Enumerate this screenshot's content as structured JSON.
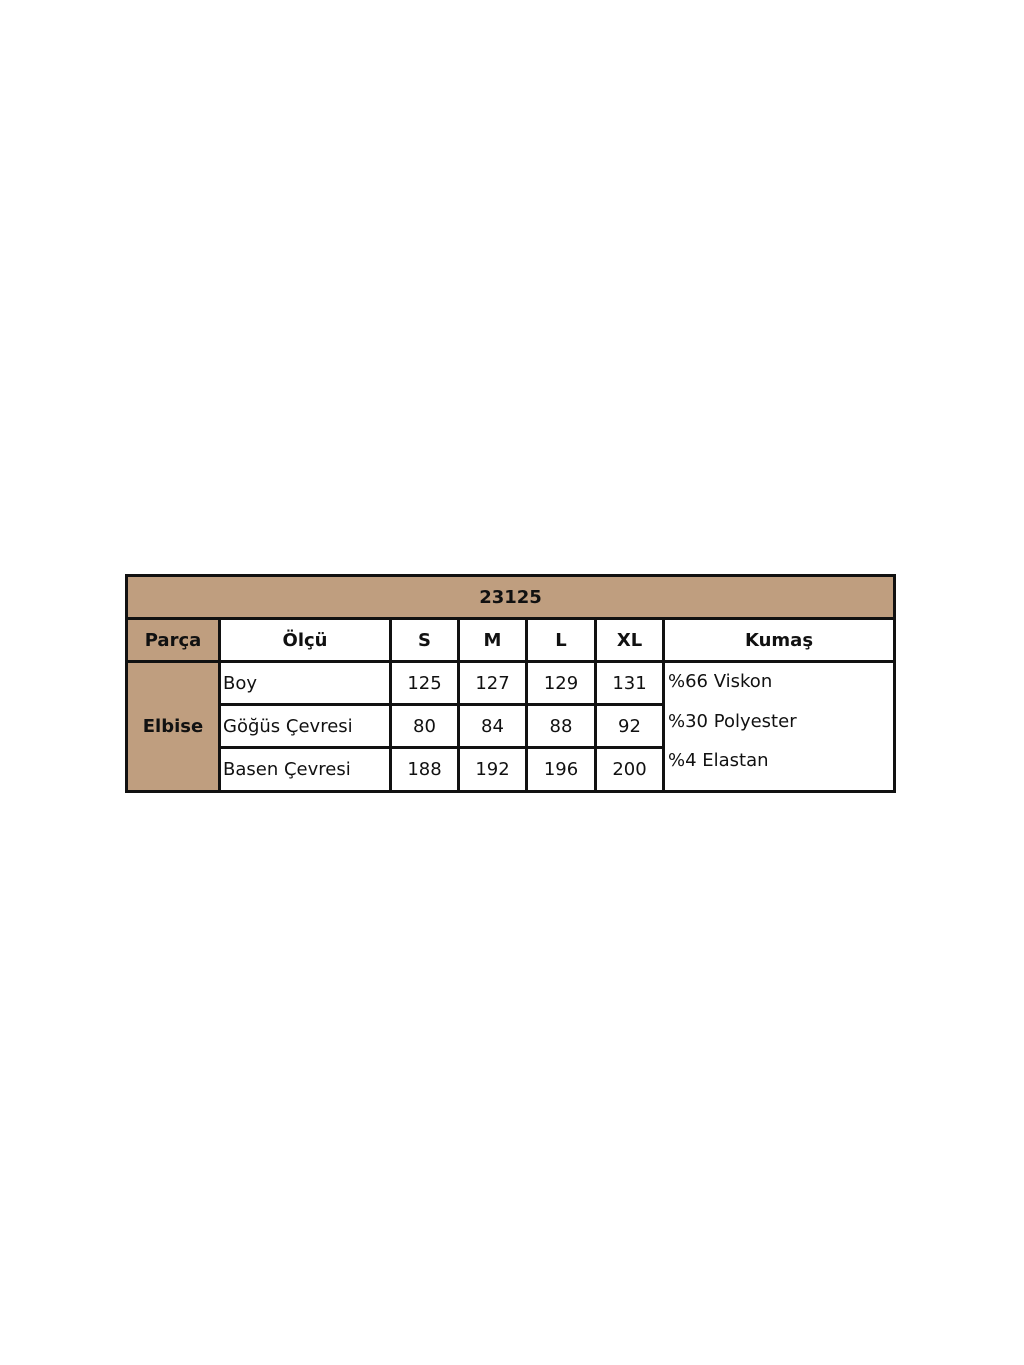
{
  "product_code": "23125",
  "headers": {
    "part": "Parça",
    "measure": "Ölçü",
    "sizes": [
      "S",
      "M",
      "L",
      "XL"
    ],
    "fabric": "Kumaş"
  },
  "part_name": "Elbise",
  "rows": [
    {
      "measure": "Boy",
      "values": [
        "125",
        "127",
        "129",
        "131"
      ]
    },
    {
      "measure": "Göğüs Çevresi",
      "values": [
        "80",
        "84",
        "88",
        "92"
      ]
    },
    {
      "measure": "Basen Çevresi",
      "values": [
        "188",
        "192",
        "196",
        "200"
      ]
    }
  ],
  "fabric_lines": [
    "%66 Viskon",
    "%30 Polyester",
    "%4 Elastan"
  ],
  "colors": {
    "header_fill": "#bf9e7f",
    "border": "#111111"
  }
}
